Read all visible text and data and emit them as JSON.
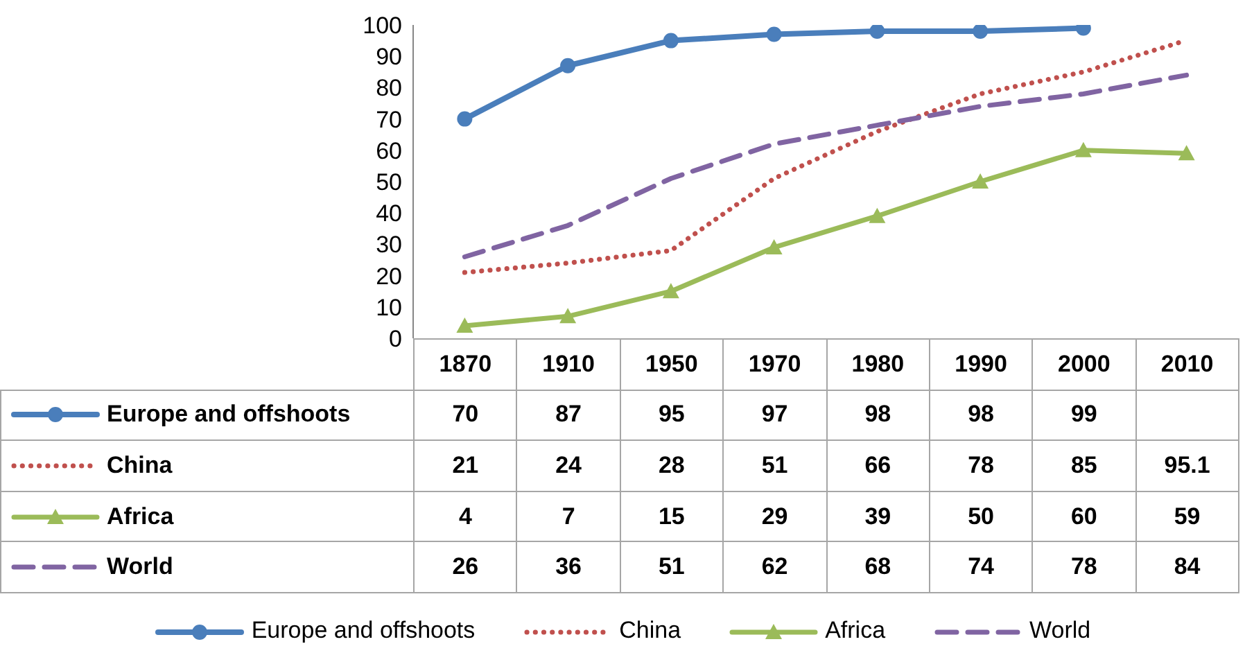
{
  "chart_data": {
    "type": "line",
    "categories": [
      "1870",
      "1910",
      "1950",
      "1970",
      "1980",
      "1990",
      "2000",
      "2010"
    ],
    "ylim": [
      0,
      100
    ],
    "yticks": [
      0,
      10,
      20,
      30,
      40,
      50,
      60,
      70,
      80,
      90,
      100
    ],
    "grid": false,
    "legend": "bottom",
    "data_labels": true,
    "series": [
      {
        "name": "Europe and offshoots",
        "color": "#4a7ebb",
        "marker": "circle",
        "line_style": "solid",
        "values": [
          70,
          87,
          95,
          97,
          98,
          98,
          99,
          null
        ]
      },
      {
        "name": "China",
        "color": "#c0504d",
        "marker": "none",
        "line_style": "dotted",
        "values": [
          21,
          24,
          28,
          51,
          66,
          78,
          85,
          95.1
        ]
      },
      {
        "name": "Africa",
        "color": "#9bbb59",
        "marker": "triangle",
        "line_style": "solid",
        "values": [
          4,
          7,
          15,
          29,
          39,
          50,
          60,
          59
        ]
      },
      {
        "name": "World",
        "color": "#8064a2",
        "marker": "none",
        "line_style": "dashed",
        "values": [
          26,
          36,
          51,
          62,
          68,
          74,
          78,
          84
        ]
      }
    ]
  }
}
